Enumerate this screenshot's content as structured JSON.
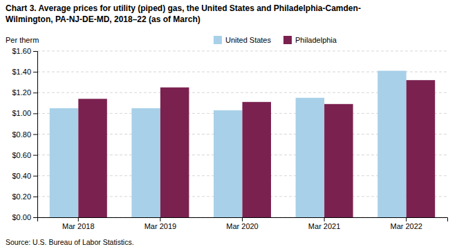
{
  "chart_data": {
    "type": "bar",
    "title": "Chart 3. Average prices for utility (piped) gas, the United States and Philadelphia-Camden-\nWilmington, PA-NJ-DE-MD, 2018–22 (as of March)",
    "ylabel": "Per therm",
    "source": "Source: U.S. Bureau of Labor Statistics.",
    "categories": [
      "Mar 2018",
      "Mar 2019",
      "Mar 2020",
      "Mar 2021",
      "Mar 2022"
    ],
    "series": [
      {
        "name": "United States",
        "color": "#a8d0e8",
        "values": [
          1.05,
          1.05,
          1.03,
          1.15,
          1.41
        ]
      },
      {
        "name": "Philadelphia",
        "color": "#7b2150",
        "values": [
          1.14,
          1.25,
          1.11,
          1.09,
          1.32
        ]
      }
    ],
    "ylim": [
      0.0,
      1.6
    ],
    "yticks": [
      {
        "value": 0.0,
        "label": "$0.00"
      },
      {
        "value": 0.2,
        "label": "$0.20"
      },
      {
        "value": 0.4,
        "label": "$0.40"
      },
      {
        "value": 0.6,
        "label": "$0.60"
      },
      {
        "value": 0.8,
        "label": "$0.80"
      },
      {
        "value": 1.0,
        "label": "$1.00"
      },
      {
        "value": 1.2,
        "label": "$1.20"
      },
      {
        "value": 1.4,
        "label": "$1.40"
      },
      {
        "value": 1.6,
        "label": "$1.60"
      }
    ],
    "grid": true,
    "legend": "top"
  }
}
